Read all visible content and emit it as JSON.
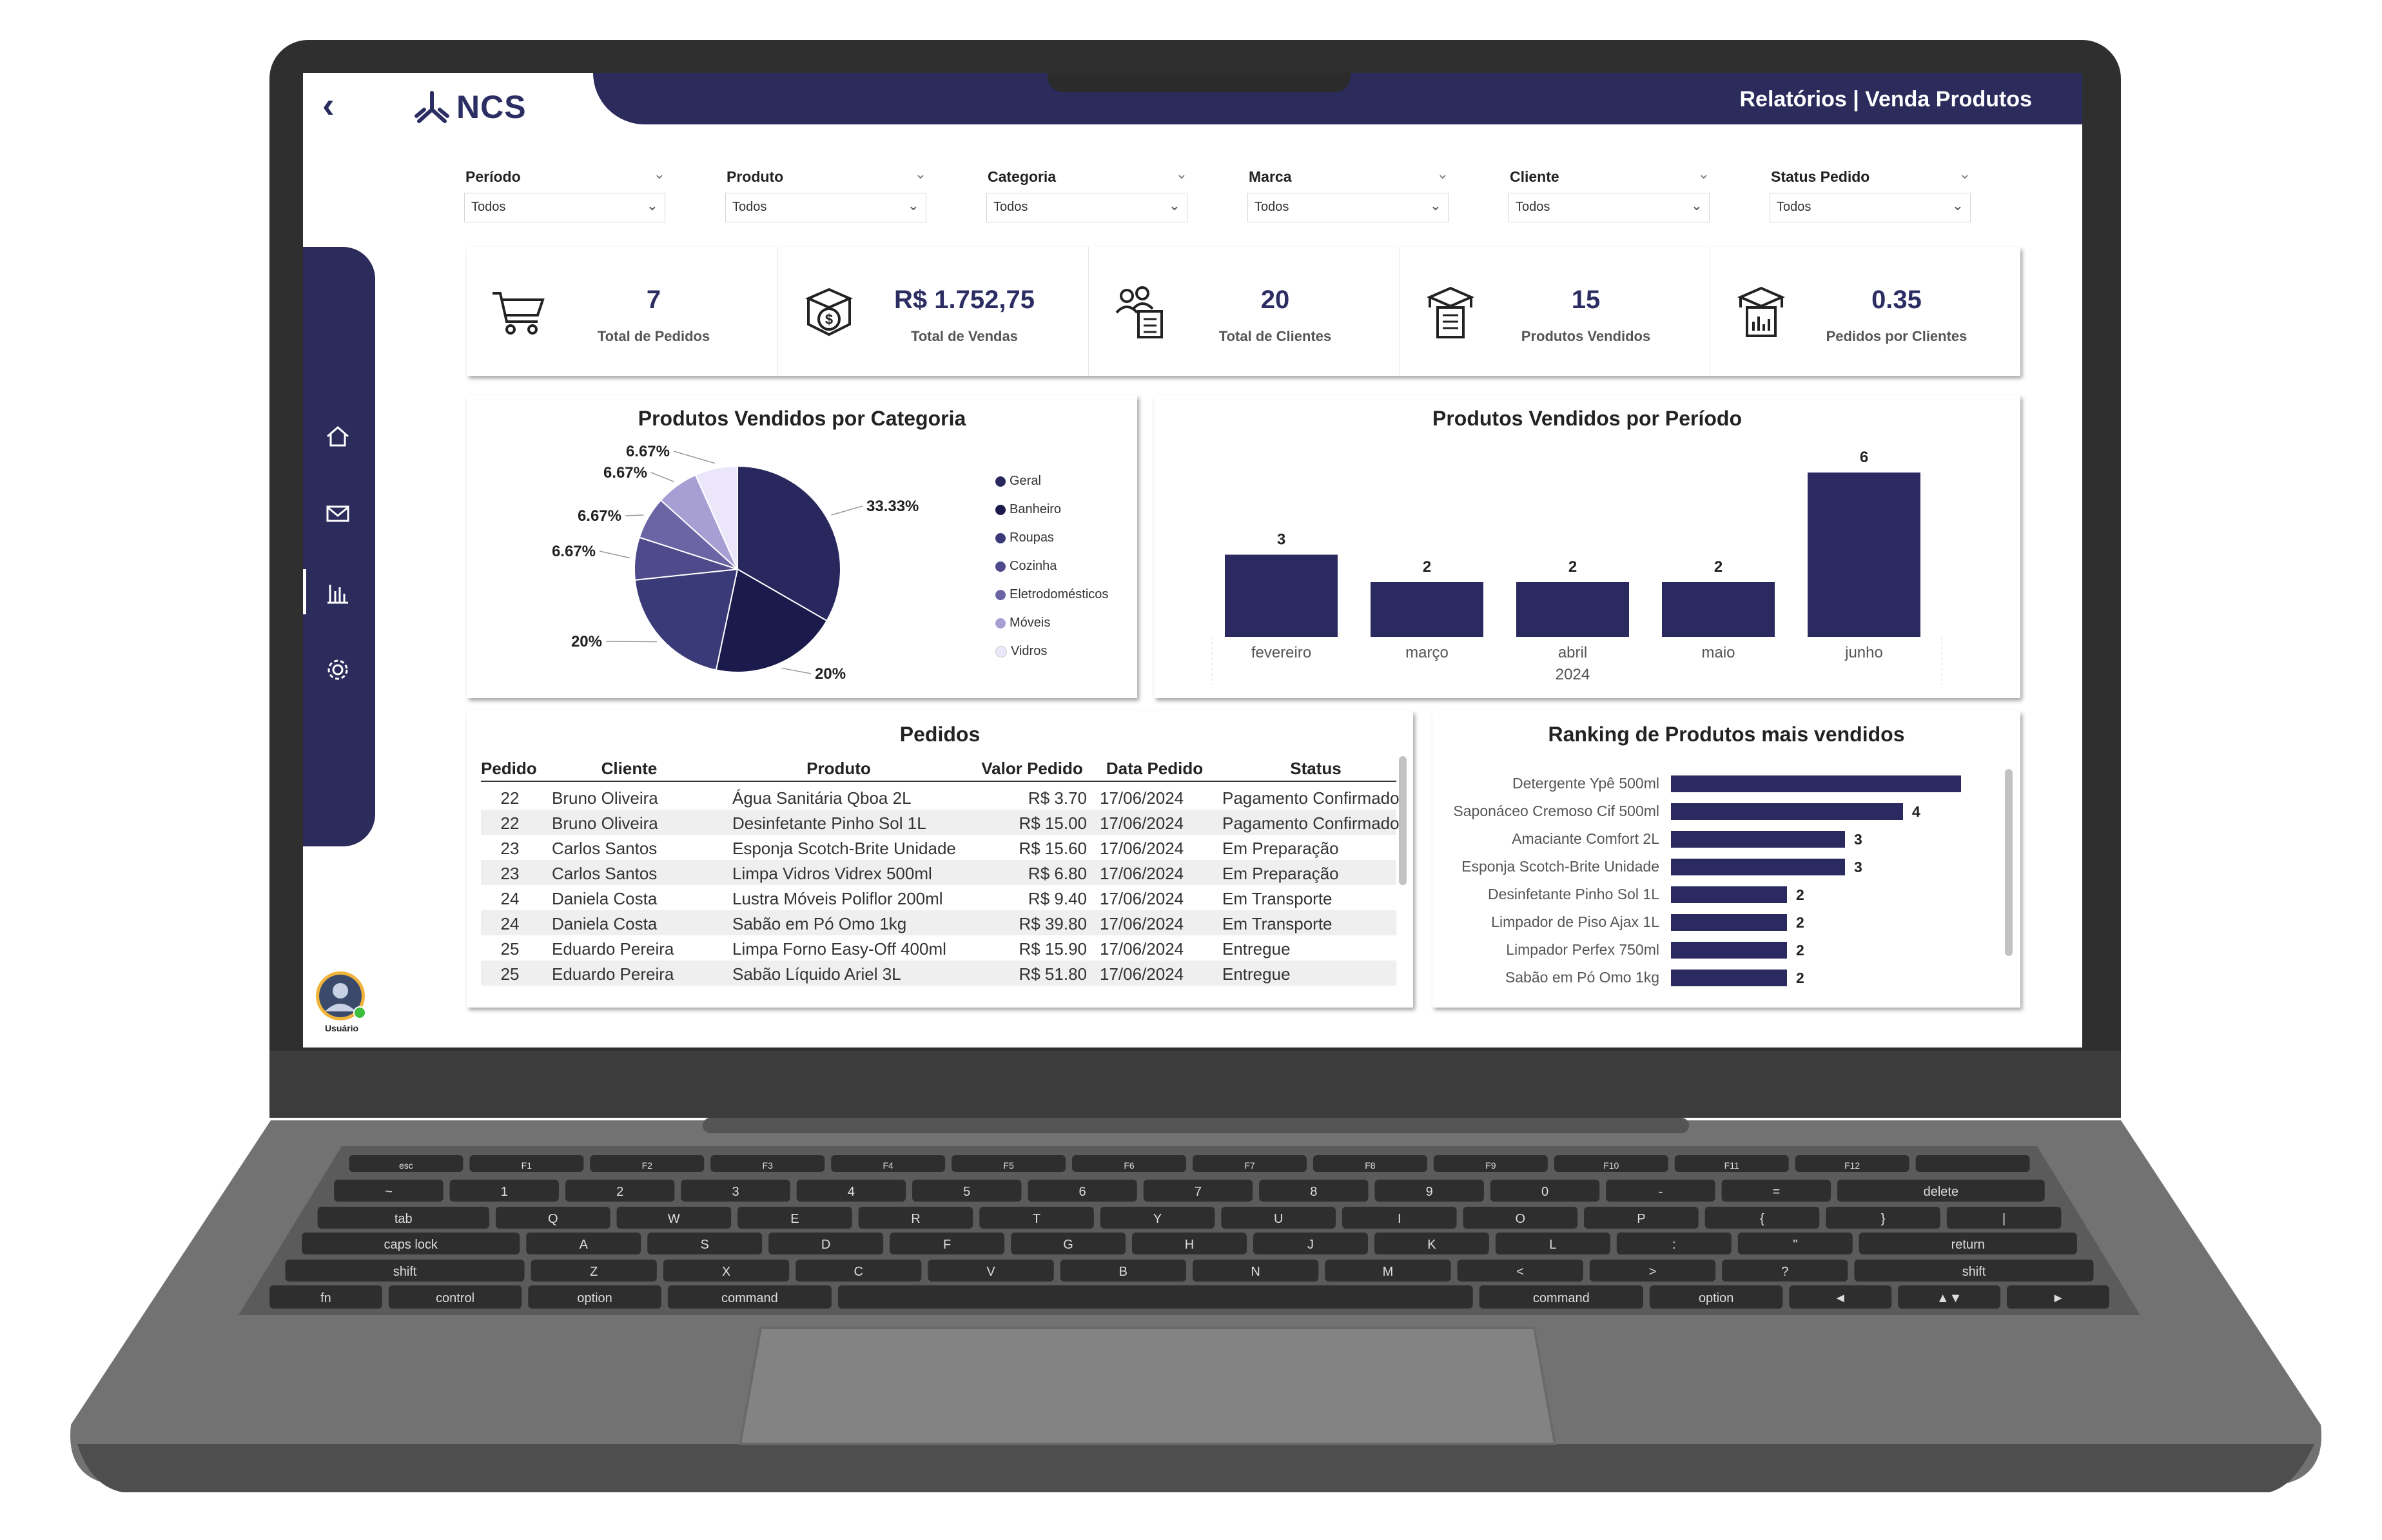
{
  "colors": {
    "navy": "#2b2b5c",
    "bar": "#2b2a60",
    "laptop_body": "#6e6e6e",
    "bezel": "#2f2f2f"
  },
  "header": {
    "brand": "NCS",
    "title": "Relatórios | Venda Produtos"
  },
  "sidebar": {
    "items": [
      {
        "icon": "home-icon"
      },
      {
        "icon": "mail-icon"
      },
      {
        "icon": "bar-chart-icon"
      },
      {
        "icon": "gear-icon"
      }
    ],
    "user_label": "Usuário"
  },
  "filters": [
    {
      "label": "Período",
      "value": "Todos"
    },
    {
      "label": "Produto",
      "value": "Todos"
    },
    {
      "label": "Categoria",
      "value": "Todos"
    },
    {
      "label": "Marca",
      "value": "Todos"
    },
    {
      "label": "Cliente",
      "value": "Todos"
    },
    {
      "label": "Status Pedido",
      "value": "Todos"
    }
  ],
  "kpis": [
    {
      "icon": "cart-icon",
      "value": "7",
      "label": "Total de Pedidos"
    },
    {
      "icon": "money-box-icon",
      "value": "R$ 1.752,75",
      "label": "Total de Vendas"
    },
    {
      "icon": "clients-list-icon",
      "value": "20",
      "label": "Total de Clientes"
    },
    {
      "icon": "box-list-icon",
      "value": "15",
      "label": "Produtos Vendidos"
    },
    {
      "icon": "box-chart-icon",
      "value": "0.35",
      "label": "Pedidos por Clientes"
    }
  ],
  "chart_data": [
    {
      "type": "pie",
      "title": "Produtos Vendidos por Categoria",
      "slices": [
        {
          "name": "Geral",
          "value": 33.33,
          "label": "33.33%",
          "color": "#28285e"
        },
        {
          "name": "Banheiro",
          "value": 20,
          "label": "20%",
          "color": "#1b1a4c"
        },
        {
          "name": "Roupas",
          "value": 20,
          "label": "20%",
          "color": "#3a3a78"
        },
        {
          "name": "Cozinha",
          "value": 6.67,
          "label": "6.67%",
          "color": "#4e4a8c"
        },
        {
          "name": "Eletrodomésticos",
          "value": 6.67,
          "label": "6.67%",
          "color": "#6b65a5"
        },
        {
          "name": "Móveis",
          "value": 6.67,
          "label": "6.67%",
          "color": "#a79ed3"
        },
        {
          "name": "Vidros",
          "value": 6.67,
          "label": "6.67%",
          "color": "#ece6fb"
        }
      ],
      "legend_position": "right"
    },
    {
      "type": "bar",
      "title": "Produtos Vendidos por Período",
      "categories": [
        "fevereiro",
        "março",
        "abril",
        "maio",
        "junho"
      ],
      "values": [
        3,
        2,
        2,
        2,
        6
      ],
      "year_label": "2024",
      "ylim": [
        0,
        6
      ]
    },
    {
      "type": "bar",
      "orientation": "horizontal",
      "title": "Ranking de Produtos mais vendidos",
      "categories": [
        "Detergente Ypê 500ml",
        "Saponáceo Cremoso Cif 500ml",
        "Amaciante Comfort 2L",
        "Esponja Scotch-Brite Unidade",
        "Desinfetante Pinho Sol 1L",
        "Limpador de Piso Ajax 1L",
        "Limpador Perfex 750ml",
        "Sabão em Pó Omo 1kg"
      ],
      "values": [
        5,
        4,
        3,
        3,
        2,
        2,
        2,
        2
      ],
      "value_labels": [
        "",
        "4",
        "3",
        "3",
        "2",
        "2",
        "2",
        "2"
      ]
    }
  ],
  "orders": {
    "title": "Pedidos",
    "columns": [
      "Pedido",
      "Cliente",
      "Produto",
      "Valor Pedido",
      "Data Pedido",
      "Status"
    ],
    "rows": [
      [
        "22",
        "Bruno Oliveira",
        "Água Sanitária Qboa 2L",
        "R$ 3.70",
        "17/06/2024",
        "Pagamento Confirmado"
      ],
      [
        "22",
        "Bruno Oliveira",
        "Desinfetante Pinho Sol 1L",
        "R$ 15.00",
        "17/06/2024",
        "Pagamento Confirmado"
      ],
      [
        "23",
        "Carlos Santos",
        "Esponja Scotch-Brite Unidade",
        "R$ 15.60",
        "17/06/2024",
        "Em Preparação"
      ],
      [
        "23",
        "Carlos Santos",
        "Limpa Vidros Vidrex 500ml",
        "R$ 6.80",
        "17/06/2024",
        "Em Preparação"
      ],
      [
        "24",
        "Daniela Costa",
        "Lustra Móveis Poliflor 200ml",
        "R$ 9.40",
        "17/06/2024",
        "Em Transporte"
      ],
      [
        "24",
        "Daniela Costa",
        "Sabão em Pó Omo 1kg",
        "R$ 39.80",
        "17/06/2024",
        "Em Transporte"
      ],
      [
        "25",
        "Eduardo Pereira",
        "Limpa Forno Easy-Off 400ml",
        "R$ 15.90",
        "17/06/2024",
        "Entregue"
      ],
      [
        "25",
        "Eduardo Pereira",
        "Sabão Líquido Ariel 3L",
        "R$ 51.80",
        "17/06/2024",
        "Entregue"
      ]
    ]
  },
  "keyboard": {
    "rows": [
      [
        "esc",
        "F1",
        "F2",
        "F3",
        "F4",
        "F5",
        "F6",
        "F7",
        "F8",
        "F9",
        "F10",
        "F11",
        "F12",
        ""
      ],
      [
        "~",
        "1",
        "2",
        "3",
        "4",
        "5",
        "6",
        "7",
        "8",
        "9",
        "0",
        "-",
        "=",
        "delete"
      ],
      [
        "tab",
        "Q",
        "W",
        "E",
        "R",
        "T",
        "Y",
        "U",
        "I",
        "O",
        "P",
        "{",
        "}",
        "|"
      ],
      [
        "caps lock",
        "A",
        "S",
        "D",
        "F",
        "G",
        "H",
        "J",
        "K",
        "L",
        ":",
        "\"",
        "return"
      ],
      [
        "shift",
        "Z",
        "X",
        "C",
        "V",
        "B",
        "N",
        "M",
        "<",
        ">",
        "?",
        "shift"
      ],
      [
        "fn",
        "control",
        "option",
        "command",
        "",
        "command",
        "option",
        "◄",
        "▲▼",
        "►"
      ]
    ]
  }
}
